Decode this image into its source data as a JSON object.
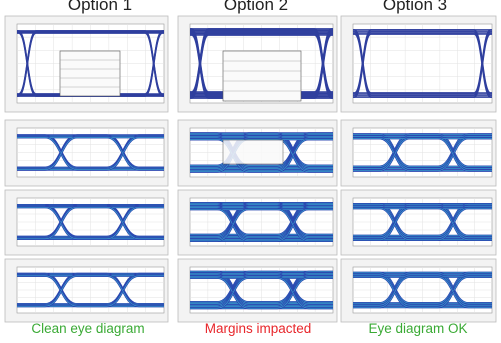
{
  "columns": [
    {
      "header": "Option 1",
      "caption": "Clean eye diagram"
    },
    {
      "header": "Option 2",
      "caption": "Margins impacted"
    },
    {
      "header": "Option 3",
      "caption": "Eye diagram OK"
    }
  ]
}
